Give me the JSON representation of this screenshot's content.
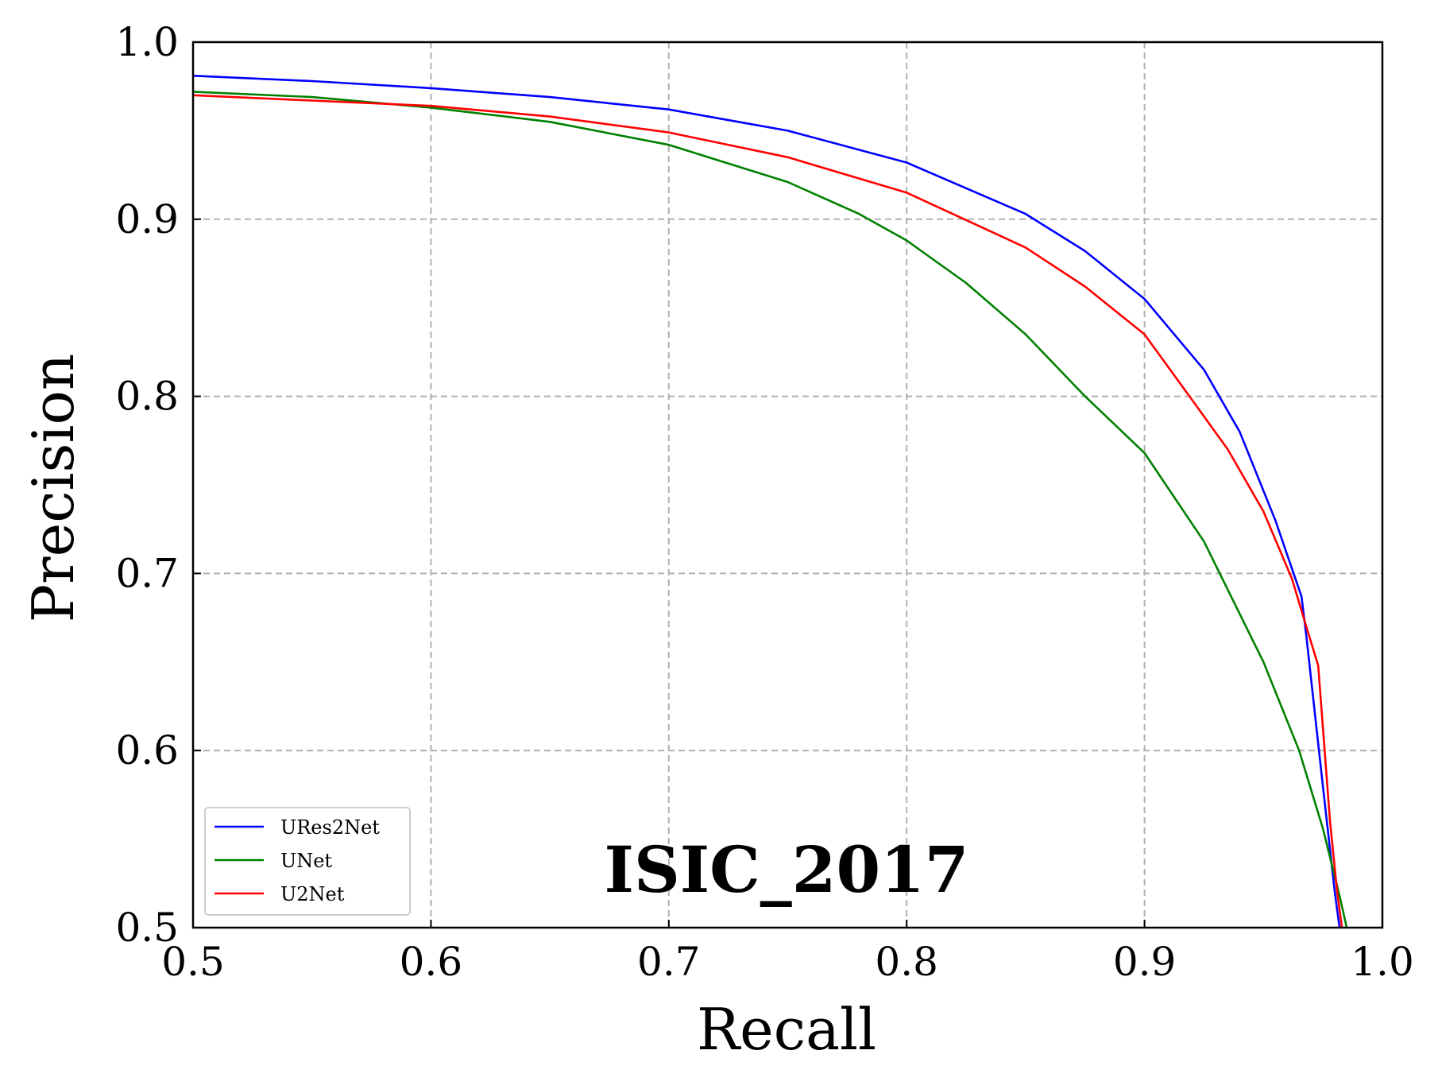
{
  "chart_data": {
    "type": "line",
    "title": "ISIC_2017",
    "xlabel": "Recall",
    "ylabel": "Precision",
    "xlim": [
      0.5,
      1.0
    ],
    "ylim": [
      0.5,
      1.0
    ],
    "xticks": [
      0.5,
      0.6,
      0.7,
      0.8,
      0.9,
      1.0
    ],
    "yticks": [
      0.5,
      0.6,
      0.7,
      0.8,
      0.9,
      1.0
    ],
    "xtick_labels": [
      "0.5",
      "0.6",
      "0.7",
      "0.8",
      "0.9",
      "1.0"
    ],
    "ytick_labels": [
      "0.5",
      "0.6",
      "0.7",
      "0.8",
      "0.9",
      "1.0"
    ],
    "grid": true,
    "legend_position": "bottom-left",
    "series": [
      {
        "name": "URes2Net",
        "color": "#0000ff",
        "x": [
          0.5,
          0.55,
          0.6,
          0.65,
          0.7,
          0.75,
          0.8,
          0.85,
          0.875,
          0.9,
          0.925,
          0.94,
          0.955,
          0.966,
          0.968,
          0.975,
          0.98,
          0.982
        ],
        "y": [
          0.981,
          0.978,
          0.974,
          0.969,
          0.962,
          0.95,
          0.932,
          0.903,
          0.882,
          0.855,
          0.815,
          0.78,
          0.73,
          0.687,
          0.665,
          0.58,
          0.52,
          0.5
        ]
      },
      {
        "name": "UNet",
        "color": "#008000",
        "x": [
          0.5,
          0.55,
          0.6,
          0.65,
          0.7,
          0.75,
          0.78,
          0.8,
          0.825,
          0.85,
          0.875,
          0.9,
          0.925,
          0.95,
          0.965,
          0.975,
          0.982,
          0.985
        ],
        "y": [
          0.972,
          0.969,
          0.963,
          0.955,
          0.942,
          0.921,
          0.903,
          0.888,
          0.864,
          0.835,
          0.8,
          0.768,
          0.718,
          0.65,
          0.6,
          0.556,
          0.518,
          0.5
        ]
      },
      {
        "name": "U2Net",
        "color": "#ff0000",
        "x": [
          0.5,
          0.55,
          0.6,
          0.65,
          0.7,
          0.75,
          0.8,
          0.85,
          0.875,
          0.9,
          0.92,
          0.935,
          0.95,
          0.962,
          0.968,
          0.973,
          0.978,
          0.981,
          0.983
        ],
        "y": [
          0.97,
          0.967,
          0.964,
          0.958,
          0.949,
          0.935,
          0.915,
          0.884,
          0.862,
          0.835,
          0.798,
          0.77,
          0.735,
          0.697,
          0.67,
          0.648,
          0.56,
          0.52,
          0.5
        ]
      }
    ]
  }
}
